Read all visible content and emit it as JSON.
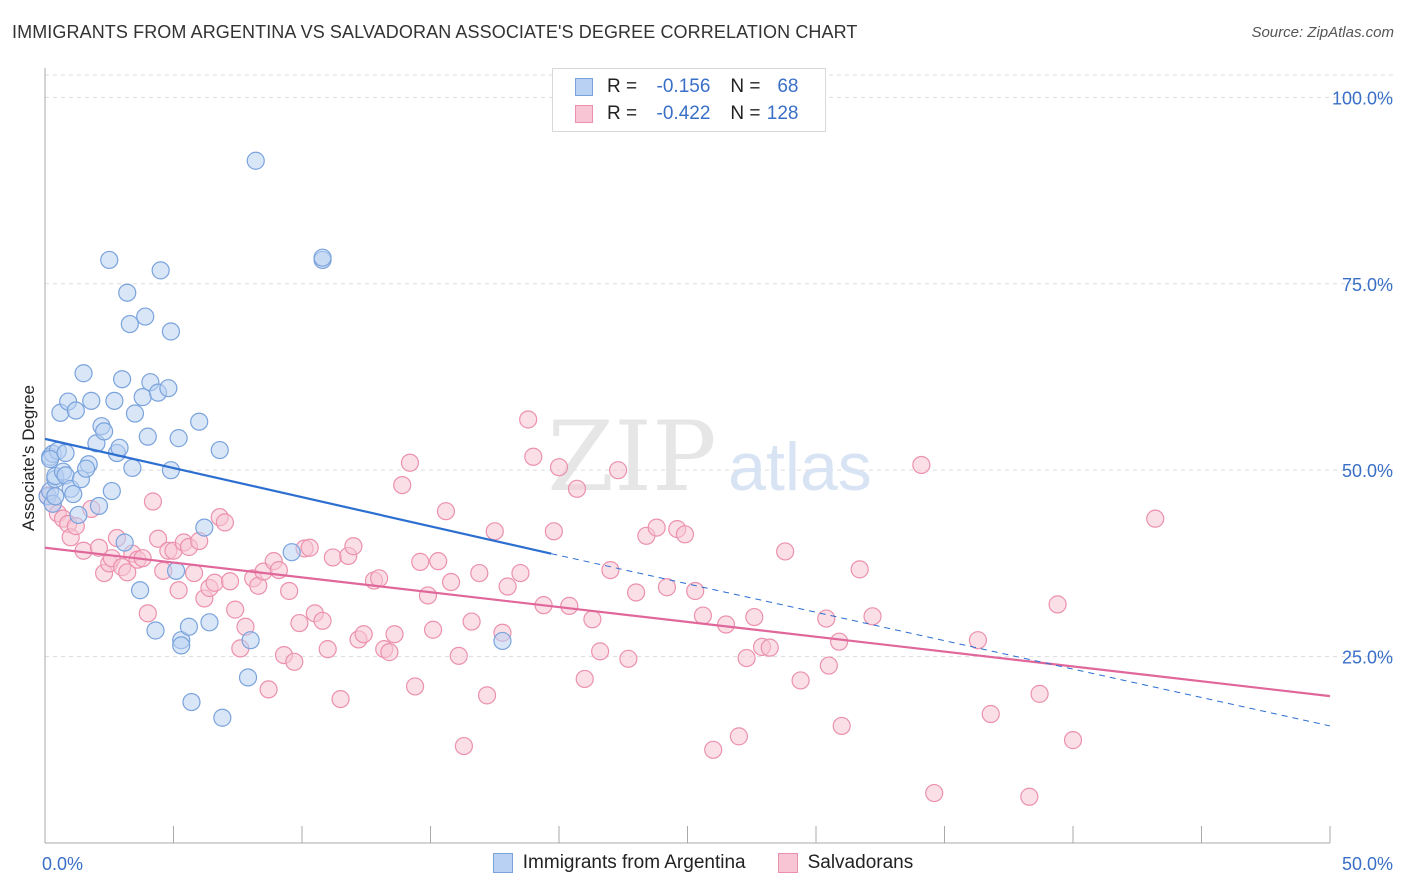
{
  "title": "IMMIGRANTS FROM ARGENTINA VS SALVADORAN ASSOCIATE'S DEGREE CORRELATION CHART",
  "source": "Source: ZipAtlas.com",
  "watermark": {
    "zip": "ZIP",
    "atlas": "atlas"
  },
  "legend": {
    "r_label": "R =",
    "n_label": "N =",
    "rows": [
      {
        "r": "-0.156",
        "n": "68"
      },
      {
        "r": "-0.422",
        "n": "128"
      }
    ]
  },
  "colors": {
    "blue_fill": "#b9d1f2",
    "blue_stroke": "#7aa3dc",
    "blue_line": "#2c6fd1",
    "pink_fill": "#f7c5d4",
    "pink_stroke": "#eb91ad",
    "pink_line": "#e0679a",
    "axis_text": "#3a6fc7"
  },
  "chart_data": {
    "type": "scatter",
    "title": "IMMIGRANTS FROM ARGENTINA VS SALVADORAN ASSOCIATE'S DEGREE CORRELATION CHART",
    "xlabel": "",
    "ylabel": "Associate's Degree",
    "xlim": [
      0,
      50
    ],
    "ylim": [
      0,
      103
    ],
    "x_tick_labels": [
      "0.0%",
      "50.0%"
    ],
    "y_ticks": [
      25,
      50,
      75,
      100
    ],
    "y_tick_labels": [
      "25.0%",
      "50.0%",
      "75.0%",
      "100.0%"
    ],
    "legend_position": "bottom-center",
    "series": [
      {
        "name": "Immigrants from Argentina",
        "r": -0.156,
        "n": 68,
        "trend_solid": {
          "x": [
            0,
            19.7
          ],
          "y": [
            54.2,
            38.8
          ]
        },
        "trend_dashed": {
          "x": [
            19.7,
            50
          ],
          "y": [
            38.8,
            15.7
          ]
        },
        "points": [
          [
            0.1,
            46.5
          ],
          [
            0.2,
            47.2
          ],
          [
            0.2,
            51.8
          ],
          [
            0.3,
            52.2
          ],
          [
            0.3,
            45.5
          ],
          [
            0.4,
            48.8
          ],
          [
            0.4,
            49.2
          ],
          [
            0.5,
            52.6
          ],
          [
            0.6,
            57.7
          ],
          [
            0.7,
            49.8
          ],
          [
            0.8,
            49.3
          ],
          [
            0.9,
            59.2
          ],
          [
            1.0,
            47.5
          ],
          [
            1.1,
            46.8
          ],
          [
            1.2,
            58.0
          ],
          [
            1.3,
            44.0
          ],
          [
            1.4,
            48.8
          ],
          [
            1.5,
            63.0
          ],
          [
            1.7,
            50.8
          ],
          [
            1.8,
            59.3
          ],
          [
            2.0,
            53.6
          ],
          [
            2.1,
            45.2
          ],
          [
            2.2,
            55.9
          ],
          [
            2.3,
            55.2
          ],
          [
            2.5,
            78.2
          ],
          [
            2.6,
            47.2
          ],
          [
            2.7,
            59.3
          ],
          [
            2.8,
            52.3
          ],
          [
            2.9,
            53.0
          ],
          [
            3.0,
            62.2
          ],
          [
            3.1,
            40.3
          ],
          [
            3.2,
            73.8
          ],
          [
            3.3,
            69.6
          ],
          [
            3.4,
            50.3
          ],
          [
            3.5,
            57.6
          ],
          [
            3.7,
            33.9
          ],
          [
            3.8,
            59.8
          ],
          [
            3.9,
            70.6
          ],
          [
            4.0,
            54.5
          ],
          [
            4.1,
            61.8
          ],
          [
            4.3,
            28.5
          ],
          [
            4.4,
            60.4
          ],
          [
            4.5,
            76.8
          ],
          [
            4.8,
            61.0
          ],
          [
            4.9,
            50.0
          ],
          [
            4.9,
            68.6
          ],
          [
            5.1,
            36.5
          ],
          [
            5.2,
            54.3
          ],
          [
            5.3,
            27.2
          ],
          [
            5.3,
            26.5
          ],
          [
            5.6,
            29.0
          ],
          [
            5.7,
            18.9
          ],
          [
            6.0,
            56.5
          ],
          [
            6.2,
            42.3
          ],
          [
            6.4,
            29.6
          ],
          [
            6.8,
            52.7
          ],
          [
            6.9,
            16.8
          ],
          [
            7.9,
            22.2
          ],
          [
            8.0,
            27.2
          ],
          [
            8.2,
            91.5
          ],
          [
            9.6,
            39.0
          ],
          [
            10.8,
            78.2
          ],
          [
            10.8,
            78.5
          ],
          [
            17.8,
            27.1
          ],
          [
            0.4,
            46.5
          ],
          [
            0.2,
            51.5
          ],
          [
            1.6,
            50.2
          ],
          [
            0.8,
            52.3
          ]
        ]
      },
      {
        "name": "Salvadorans",
        "r": -0.422,
        "n": 128,
        "trend": {
          "x": [
            0,
            50
          ],
          "y": [
            39.6,
            19.7
          ]
        },
        "points": [
          [
            0.1,
            46.6
          ],
          [
            0.3,
            45.5
          ],
          [
            0.5,
            44.2
          ],
          [
            0.7,
            43.5
          ],
          [
            0.9,
            42.8
          ],
          [
            1.0,
            41.0
          ],
          [
            1.2,
            42.5
          ],
          [
            1.5,
            39.2
          ],
          [
            1.8,
            44.8
          ],
          [
            2.1,
            39.6
          ],
          [
            2.3,
            36.2
          ],
          [
            2.5,
            37.5
          ],
          [
            2.6,
            38.2
          ],
          [
            2.8,
            40.9
          ],
          [
            3.0,
            37.0
          ],
          [
            3.2,
            36.3
          ],
          [
            3.4,
            38.8
          ],
          [
            3.6,
            38.0
          ],
          [
            3.8,
            38.2
          ],
          [
            4.0,
            30.8
          ],
          [
            4.2,
            45.8
          ],
          [
            4.4,
            40.8
          ],
          [
            4.6,
            36.5
          ],
          [
            4.8,
            39.2
          ],
          [
            5.0,
            39.2
          ],
          [
            5.2,
            33.9
          ],
          [
            5.4,
            40.3
          ],
          [
            5.6,
            39.7
          ],
          [
            5.8,
            36.2
          ],
          [
            6.0,
            40.5
          ],
          [
            6.2,
            32.8
          ],
          [
            6.4,
            34.2
          ],
          [
            6.6,
            34.9
          ],
          [
            6.8,
            43.7
          ],
          [
            7.0,
            43.0
          ],
          [
            7.2,
            35.1
          ],
          [
            7.4,
            31.3
          ],
          [
            7.6,
            26.1
          ],
          [
            7.8,
            29.0
          ],
          [
            8.1,
            35.5
          ],
          [
            8.3,
            34.5
          ],
          [
            8.5,
            36.4
          ],
          [
            8.7,
            20.6
          ],
          [
            8.9,
            37.8
          ],
          [
            9.1,
            36.6
          ],
          [
            9.3,
            25.2
          ],
          [
            9.5,
            33.8
          ],
          [
            9.7,
            24.3
          ],
          [
            9.9,
            29.5
          ],
          [
            10.1,
            39.5
          ],
          [
            10.3,
            39.6
          ],
          [
            10.5,
            30.8
          ],
          [
            10.8,
            29.8
          ],
          [
            11.0,
            26.0
          ],
          [
            11.2,
            38.3
          ],
          [
            11.5,
            19.3
          ],
          [
            11.8,
            38.5
          ],
          [
            12.0,
            39.8
          ],
          [
            12.2,
            27.3
          ],
          [
            12.4,
            28.0
          ],
          [
            12.8,
            35.2
          ],
          [
            13.0,
            35.5
          ],
          [
            13.2,
            26.0
          ],
          [
            13.4,
            25.6
          ],
          [
            13.6,
            28.0
          ],
          [
            13.9,
            48.0
          ],
          [
            14.2,
            51.0
          ],
          [
            14.4,
            21.0
          ],
          [
            14.6,
            37.7
          ],
          [
            14.9,
            33.2
          ],
          [
            15.1,
            28.6
          ],
          [
            15.3,
            37.8
          ],
          [
            15.6,
            44.5
          ],
          [
            15.8,
            35.0
          ],
          [
            16.1,
            25.1
          ],
          [
            16.3,
            13.0
          ],
          [
            16.6,
            29.7
          ],
          [
            16.9,
            36.2
          ],
          [
            17.2,
            19.8
          ],
          [
            17.5,
            41.8
          ],
          [
            17.8,
            28.2
          ],
          [
            18.0,
            34.4
          ],
          [
            18.5,
            36.2
          ],
          [
            18.8,
            56.8
          ],
          [
            19.0,
            51.8
          ],
          [
            19.4,
            31.9
          ],
          [
            19.8,
            41.8
          ],
          [
            20.0,
            50.4
          ],
          [
            20.4,
            31.8
          ],
          [
            20.7,
            47.5
          ],
          [
            21.0,
            22.0
          ],
          [
            21.3,
            30.0
          ],
          [
            21.6,
            25.7
          ],
          [
            22.0,
            36.6
          ],
          [
            22.3,
            50.0
          ],
          [
            22.7,
            24.7
          ],
          [
            23.0,
            33.6
          ],
          [
            23.4,
            41.2
          ],
          [
            23.8,
            42.3
          ],
          [
            24.2,
            34.3
          ],
          [
            24.6,
            42.1
          ],
          [
            24.9,
            41.4
          ],
          [
            25.3,
            33.8
          ],
          [
            25.6,
            30.5
          ],
          [
            26.0,
            12.5
          ],
          [
            26.5,
            29.3
          ],
          [
            27.0,
            14.3
          ],
          [
            27.3,
            24.8
          ],
          [
            27.6,
            30.3
          ],
          [
            27.9,
            26.3
          ],
          [
            28.2,
            26.2
          ],
          [
            28.8,
            39.1
          ],
          [
            29.4,
            21.8
          ],
          [
            30.4,
            30.1
          ],
          [
            30.5,
            23.8
          ],
          [
            30.9,
            27.0
          ],
          [
            31.0,
            15.7
          ],
          [
            31.7,
            36.7
          ],
          [
            32.2,
            30.4
          ],
          [
            34.1,
            50.7
          ],
          [
            34.6,
            6.7
          ],
          [
            36.3,
            27.2
          ],
          [
            36.8,
            17.3
          ],
          [
            38.3,
            6.2
          ],
          [
            38.7,
            20.0
          ],
          [
            39.4,
            32.0
          ],
          [
            40.0,
            13.8
          ],
          [
            43.2,
            43.5
          ]
        ]
      }
    ]
  }
}
